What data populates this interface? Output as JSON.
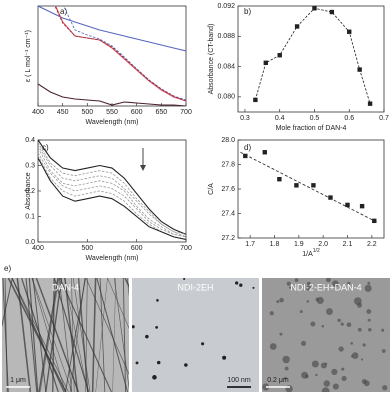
{
  "chart_data": [
    {
      "type": "line",
      "panel": "a)",
      "xlabel": "Wavelength (nm)",
      "ylabel": "ε ( L mol⁻¹ cm⁻¹)",
      "xlim": [
        400,
        700
      ],
      "ylim": [
        0,
        100
      ],
      "xticks": [
        400,
        450,
        500,
        550,
        600,
        650,
        700
      ],
      "x": [
        400,
        425,
        450,
        475,
        500,
        525,
        550,
        575,
        600,
        625,
        650,
        675,
        700
      ],
      "series": [
        {
          "color": "#5566c0",
          "dash": false,
          "values": [
            100,
            94,
            88,
            84,
            80,
            76,
            73,
            70,
            67,
            64,
            61,
            58,
            55
          ]
        },
        {
          "color": "#d84a56",
          "dash": false,
          "values": [
            null,
            112,
            84,
            70,
            68,
            66,
            58,
            47,
            36,
            25,
            16,
            9,
            5
          ]
        },
        {
          "color": "#4a5fc0",
          "dash": true,
          "values": [
            null,
            null,
            102,
            76,
            71,
            67,
            60,
            49,
            37,
            26,
            17,
            10,
            6
          ]
        },
        {
          "color": "#8a2c3c",
          "dash": true,
          "values": [
            null,
            110,
            83,
            70,
            68,
            66,
            59,
            48,
            37,
            26,
            17,
            10,
            5
          ]
        },
        {
          "color": "#4a2030",
          "dash": false,
          "values": [
            22,
            14,
            9,
            7,
            6,
            5,
            1,
            4,
            3,
            2,
            1,
            1,
            0
          ]
        }
      ]
    },
    {
      "type": "line",
      "panel": "b)",
      "xlabel": "Mole fraction of DAN-4",
      "ylabel": "Absorbance (CT-band)",
      "xlim": [
        0.28,
        0.7
      ],
      "ylim": [
        0.078,
        0.092
      ],
      "xticks": [
        0.3,
        0.4,
        0.5,
        0.6,
        0.7
      ],
      "yticks": [
        {
          "value": 0.08,
          "label": "0.080"
        },
        0.084,
        0.088,
        0.092
      ],
      "x": [
        0.33,
        0.36,
        0.4,
        0.45,
        0.5,
        0.55,
        0.6,
        0.63,
        0.66
      ],
      "series": [
        {
          "color": "#222222",
          "dash": true,
          "markers": true,
          "values": [
            0.0796,
            0.0845,
            0.0855,
            0.0893,
            0.0917,
            0.0912,
            0.0886,
            0.0836,
            0.0791
          ]
        }
      ]
    },
    {
      "type": "line",
      "panel": "c)",
      "xlabel": "Wavelength (nm)",
      "ylabel": "Absorbance",
      "xlim": [
        400,
        700
      ],
      "ylim": [
        0,
        0.4
      ],
      "xticks": [
        400,
        500,
        600,
        700
      ],
      "yticks": [
        {
          "value": 0,
          "label": "0.0"
        },
        0.1,
        0.2,
        0.3,
        0.4
      ],
      "x": [
        400,
        425,
        450,
        475,
        500,
        525,
        550,
        575,
        600,
        625,
        650,
        675,
        700
      ],
      "series": [
        {
          "color": "#222222",
          "dash": false,
          "values": [
            0.4,
            0.33,
            0.29,
            0.28,
            0.29,
            0.3,
            0.29,
            0.25,
            0.19,
            0.13,
            0.08,
            0.05,
            0.03
          ]
        },
        {
          "color": "#999999",
          "dash": true,
          "values": [
            0.39,
            0.31,
            0.27,
            0.26,
            0.27,
            0.28,
            0.27,
            0.23,
            0.17,
            0.12,
            0.07,
            0.04,
            0.03
          ]
        },
        {
          "color": "#999999",
          "dash": true,
          "values": [
            0.38,
            0.3,
            0.25,
            0.24,
            0.25,
            0.26,
            0.25,
            0.21,
            0.16,
            0.11,
            0.07,
            0.04,
            0.02
          ]
        },
        {
          "color": "#999999",
          "dash": true,
          "values": [
            0.37,
            0.28,
            0.23,
            0.22,
            0.23,
            0.24,
            0.23,
            0.2,
            0.14,
            0.09,
            0.06,
            0.03,
            0.02
          ]
        },
        {
          "color": "#999999",
          "dash": true,
          "values": [
            0.35,
            0.27,
            0.22,
            0.2,
            0.21,
            0.22,
            0.21,
            0.18,
            0.13,
            0.08,
            0.05,
            0.03,
            0.02
          ]
        },
        {
          "color": "#999999",
          "dash": true,
          "values": [
            0.34,
            0.25,
            0.2,
            0.18,
            0.19,
            0.2,
            0.19,
            0.16,
            0.11,
            0.07,
            0.04,
            0.02,
            0.01
          ]
        },
        {
          "color": "#222222",
          "dash": false,
          "values": [
            0.33,
            0.24,
            0.18,
            0.16,
            0.17,
            0.18,
            0.17,
            0.14,
            0.1,
            0.06,
            0.04,
            0.02,
            0.01
          ]
        }
      ]
    },
    {
      "type": "scatter",
      "panel": "d)",
      "xlabel": "1/A",
      "xlabel_sup": "1/2",
      "ylabel": "C/A",
      "xlim": [
        1.65,
        2.25
      ],
      "ylim": [
        27.2,
        28.0
      ],
      "xticks": [
        1.7,
        1.8,
        1.9,
        {
          "value": 2,
          "label": "2.0"
        },
        2.1,
        2.2
      ],
      "yticks": [
        27.2,
        27.4,
        27.6,
        27.8,
        {
          "value": 28,
          "label": "28.0"
        }
      ],
      "x": [
        1.68,
        1.76,
        1.82,
        1.89,
        1.96,
        2.03,
        2.1,
        2.16,
        2.21
      ],
      "series": [
        {
          "color": "#222222",
          "values": [
            27.87,
            27.9,
            27.68,
            27.63,
            27.63,
            27.53,
            27.47,
            27.46,
            27.34
          ]
        }
      ],
      "trendline": {
        "x": [
          1.66,
          2.22
        ],
        "y": [
          27.9,
          27.33
        ]
      }
    }
  ],
  "panel_e": {
    "label": "e)",
    "images": [
      {
        "label": "DAN-4",
        "scale": "1 μm"
      },
      {
        "label": "NDI-2EH",
        "scale": "100 nm"
      },
      {
        "label": "NDI-2-EH+DAN-4",
        "scale": "0.2 μm"
      }
    ]
  }
}
